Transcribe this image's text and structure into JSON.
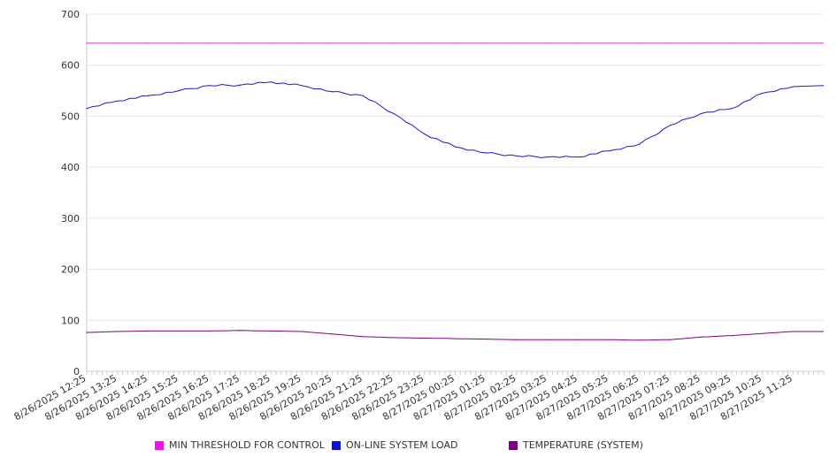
{
  "chart_data": {
    "type": "line",
    "ylim": [
      0,
      700
    ],
    "y_ticks": [
      "0",
      "100",
      "200",
      "300",
      "400",
      "500",
      "600",
      "700"
    ],
    "grid": true,
    "legend_position": "bottom",
    "categories": [
      "8/26/2025 12:25",
      "8/26/2025 13:25",
      "8/26/2025 14:25",
      "8/26/2025 15:25",
      "8/26/2025 16:25",
      "8/26/2025 17:25",
      "8/26/2025 18:25",
      "8/26/2025 19:25",
      "8/26/2025 20:25",
      "8/26/2025 21:25",
      "8/26/2025 22:25",
      "8/26/2025 23:25",
      "8/27/2025 00:25",
      "8/27/2025 01:25",
      "8/27/2025 02:25",
      "8/27/2025 03:25",
      "8/27/2025 04:25",
      "8/27/2025 05:25",
      "8/27/2025 06:25",
      "8/27/2025 07:25",
      "8/27/2025 08:25",
      "8/27/2025 09:25",
      "8/27/2025 10:25",
      "8/27/2025 11:25"
    ],
    "series": [
      {
        "name": "MIN THRESHOLD FOR CONTROL",
        "color": "#cc33cc",
        "values": [
          643,
          643,
          643,
          643,
          643,
          643,
          643,
          643,
          643,
          643,
          643,
          643,
          643,
          643,
          643,
          643,
          643,
          643,
          643,
          643,
          643,
          643,
          643,
          643
        ]
      },
      {
        "name": "ON-LINE SYSTEM LOAD",
        "color": "#1a1acc",
        "values": [
          515,
          530,
          540,
          550,
          560,
          561,
          567,
          560,
          548,
          540,
          505,
          465,
          440,
          428,
          422,
          420,
          420,
          432,
          445,
          482,
          505,
          515,
          545,
          558
        ]
      },
      {
        "name": "TEMPERATURE (SYSTEM)",
        "color": "#800080",
        "values": [
          76,
          78,
          79,
          79,
          79,
          80,
          79,
          78,
          73,
          68,
          66,
          65,
          64,
          63,
          62,
          62,
          62,
          62,
          61,
          62,
          67,
          70,
          74,
          78
        ]
      }
    ]
  },
  "legend": {
    "items": [
      {
        "label": "MIN THRESHOLD FOR CONTROL",
        "color": "#ee11ee"
      },
      {
        "label": "ON-LINE SYSTEM LOAD",
        "color": "#1111dd"
      },
      {
        "label": "TEMPERATURE (SYSTEM)",
        "color": "#800080"
      }
    ]
  }
}
